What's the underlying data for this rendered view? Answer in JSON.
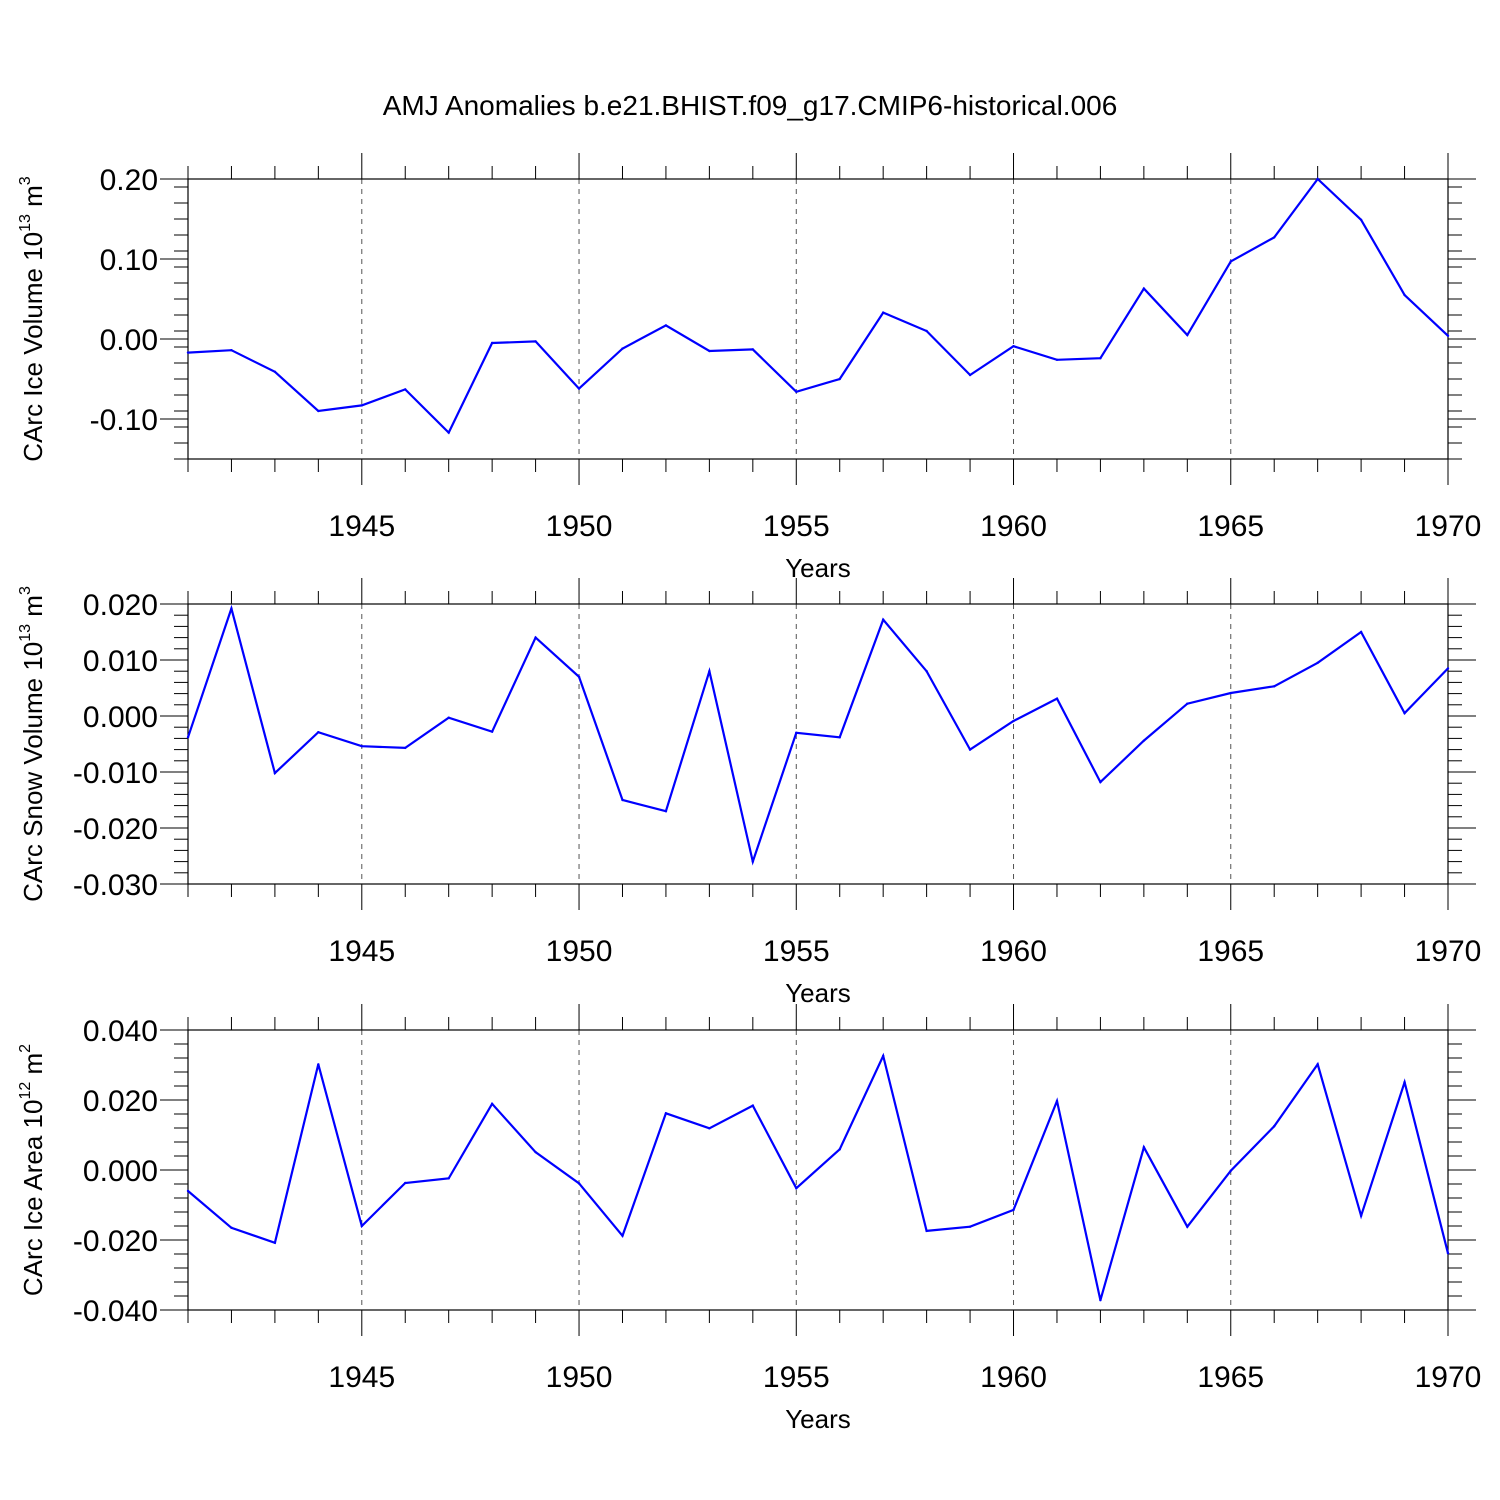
{
  "title": "AMJ Anomalies b.e21.BHIST.f09_g17.CMIP6-historical.006",
  "chart_data": [
    {
      "type": "line",
      "title": "AMJ Anomalies b.e21.BHIST.f09_g17.CMIP6-historical.006",
      "ylabel_main": "CArc Ice Volume 10",
      "ylabel_exp": "13",
      "ylabel_unit": " m",
      "ylabel_unit_exp": "3",
      "xlabel": "Years",
      "xlim": [
        1941,
        1970
      ],
      "ylim": [
        -0.15,
        0.2
      ],
      "x_ticks": [
        1945,
        1950,
        1955,
        1960,
        1965,
        1970
      ],
      "x_tick_labels": [
        "1945",
        "1950",
        "1955",
        "1960",
        "1965",
        "1970"
      ],
      "y_ticks": [
        -0.1,
        0.0,
        0.1,
        0.2
      ],
      "y_tick_labels": [
        "-0.10",
        "0.00",
        "0.10",
        "0.20"
      ],
      "line_color": "#0000ff",
      "grid": "dashed vertical at major x ticks",
      "series": [
        {
          "name": "CArc Ice Volume",
          "x": [
            1941,
            1942,
            1943,
            1944,
            1945,
            1946,
            1947,
            1948,
            1949,
            1950,
            1951,
            1952,
            1953,
            1954,
            1955,
            1956,
            1957,
            1958,
            1959,
            1960,
            1961,
            1962,
            1963,
            1964,
            1965,
            1966,
            1967,
            1968,
            1969,
            1970
          ],
          "values": [
            -0.017,
            -0.014,
            -0.041,
            -0.09,
            -0.083,
            -0.063,
            -0.117,
            -0.005,
            -0.003,
            -0.062,
            -0.012,
            0.017,
            -0.015,
            -0.013,
            -0.066,
            -0.05,
            0.033,
            0.01,
            -0.045,
            -0.009,
            -0.026,
            -0.024,
            0.063,
            0.005,
            0.097,
            0.127,
            0.2,
            0.149,
            0.055,
            0.004
          ]
        }
      ]
    },
    {
      "type": "line",
      "ylabel_main": "CArc Snow Volume 10",
      "ylabel_exp": "13",
      "ylabel_unit": " m",
      "ylabel_unit_exp": "3",
      "xlabel": "Years",
      "xlim": [
        1941,
        1970
      ],
      "ylim": [
        -0.03,
        0.02
      ],
      "x_ticks": [
        1945,
        1950,
        1955,
        1960,
        1965,
        1970
      ],
      "x_tick_labels": [
        "1945",
        "1950",
        "1955",
        "1960",
        "1965",
        "1970"
      ],
      "y_ticks": [
        -0.03,
        -0.02,
        -0.01,
        0.0,
        0.01,
        0.02
      ],
      "y_tick_labels": [
        "-0.030",
        "-0.020",
        "-0.010",
        "0.000",
        "0.010",
        "0.020"
      ],
      "line_color": "#0000ff",
      "grid": "dashed vertical at major x ticks",
      "series": [
        {
          "name": "CArc Snow Volume",
          "x": [
            1941,
            1942,
            1943,
            1944,
            1945,
            1946,
            1947,
            1948,
            1949,
            1950,
            1951,
            1952,
            1953,
            1954,
            1955,
            1956,
            1957,
            1958,
            1959,
            1960,
            1961,
            1962,
            1963,
            1964,
            1965,
            1966,
            1967,
            1968,
            1969,
            1970
          ],
          "values": [
            -0.0038,
            0.0192,
            -0.0102,
            -0.0029,
            -0.0054,
            -0.0057,
            -0.0003,
            -0.0028,
            0.014,
            0.007,
            -0.015,
            -0.017,
            0.008,
            -0.026,
            -0.003,
            -0.0038,
            0.0172,
            0.008,
            -0.006,
            -0.0009,
            0.0031,
            -0.0118,
            -0.0044,
            0.0022,
            0.0041,
            0.0053,
            0.0095,
            0.015,
            0.0005,
            0.0085
          ]
        }
      ]
    },
    {
      "type": "line",
      "ylabel_main": "CArc Ice Area 10",
      "ylabel_exp": "12",
      "ylabel_unit": " m",
      "ylabel_unit_exp": "2",
      "xlabel": "Years",
      "xlim": [
        1941,
        1970
      ],
      "ylim": [
        -0.04,
        0.04
      ],
      "x_ticks": [
        1945,
        1950,
        1955,
        1960,
        1965,
        1970
      ],
      "x_tick_labels": [
        "1945",
        "1950",
        "1955",
        "1960",
        "1965",
        "1970"
      ],
      "y_ticks": [
        -0.04,
        -0.02,
        0.0,
        0.02,
        0.04
      ],
      "y_tick_labels": [
        "-0.040",
        "-0.020",
        "0.000",
        "0.020",
        "0.040"
      ],
      "line_color": "#0000ff",
      "grid": "dashed vertical at major x ticks",
      "series": [
        {
          "name": "CArc Ice Area",
          "x": [
            1941,
            1942,
            1943,
            1944,
            1945,
            1946,
            1947,
            1948,
            1949,
            1950,
            1951,
            1952,
            1953,
            1954,
            1955,
            1956,
            1957,
            1958,
            1959,
            1960,
            1961,
            1962,
            1963,
            1964,
            1965,
            1966,
            1967,
            1968,
            1969,
            1970
          ],
          "values": [
            -0.006,
            -0.0165,
            -0.0208,
            0.0302,
            -0.016,
            -0.0037,
            -0.0024,
            0.0189,
            0.0051,
            -0.0038,
            -0.0188,
            0.0162,
            0.0119,
            0.0184,
            -0.0052,
            0.0059,
            0.0326,
            -0.0174,
            -0.0162,
            -0.0114,
            0.0197,
            -0.0372,
            0.0065,
            -0.0162,
            -0.0002,
            0.0125,
            0.0302,
            -0.0131,
            0.0251,
            -0.0238
          ]
        }
      ]
    }
  ]
}
